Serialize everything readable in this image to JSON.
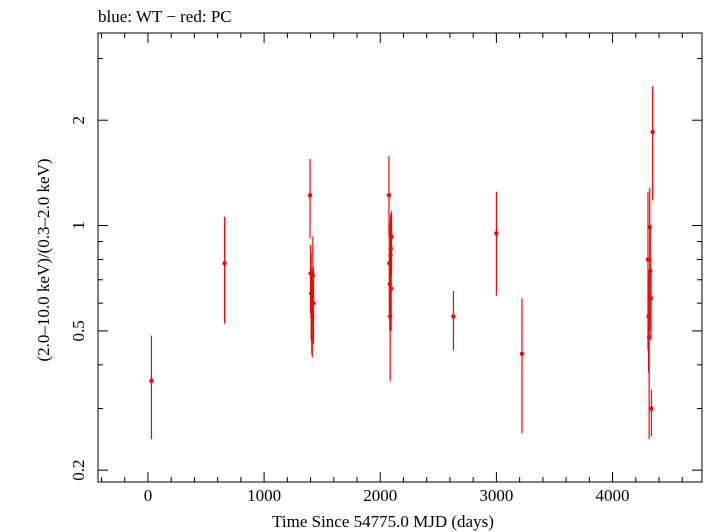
{
  "chart_data": {
    "type": "scatter",
    "title": "blue: WT − red: PC",
    "xlabel": "Time Since 54775.0 MJD (days)",
    "ylabel": "(2.0–10.0 keV)/(0.3–2.0 keV)",
    "xlim": [
      -430,
      4770
    ],
    "ylim": [
      0.185,
      3.55
    ],
    "yscale": "log",
    "x_ticks": [
      0,
      1000,
      2000,
      3000,
      4000
    ],
    "x_tick_labels": [
      "0",
      "1000",
      "2000",
      "3000",
      "4000"
    ],
    "y_ticks": [
      0.2,
      0.5,
      1,
      2
    ],
    "y_tick_labels": [
      "0.2",
      "0.5",
      "1",
      "2"
    ],
    "grid": false,
    "series": [
      {
        "name": "PC",
        "color": "#ff0000",
        "points": [
          {
            "x": 30,
            "y": 0.36,
            "ylo": 0.245,
            "yhi": 0.485
          },
          {
            "x": 660,
            "y": 0.78,
            "ylo": 0.525,
            "yhi": 1.06
          },
          {
            "x": 1395,
            "y": 1.22,
            "ylo": 0.92,
            "yhi": 1.55
          },
          {
            "x": 1400,
            "y": 0.73,
            "ylo": 0.56,
            "yhi": 0.88
          },
          {
            "x": 1405,
            "y": 0.64,
            "ylo": 0.47,
            "yhi": 0.83
          },
          {
            "x": 1410,
            "y": 0.58,
            "ylo": 0.43,
            "yhi": 0.75
          },
          {
            "x": 1415,
            "y": 0.55,
            "ylo": 0.42,
            "yhi": 0.69
          },
          {
            "x": 1420,
            "y": 0.72,
            "ylo": 0.52,
            "yhi": 0.93
          },
          {
            "x": 1425,
            "y": 0.6,
            "ylo": 0.46,
            "yhi": 0.76
          },
          {
            "x": 2075,
            "y": 1.22,
            "ylo": 0.93,
            "yhi": 1.58
          },
          {
            "x": 2078,
            "y": 0.78,
            "ylo": 0.56,
            "yhi": 1.02
          },
          {
            "x": 2082,
            "y": 0.68,
            "ylo": 0.5,
            "yhi": 0.88
          },
          {
            "x": 2085,
            "y": 0.55,
            "ylo": 0.36,
            "yhi": 0.77
          },
          {
            "x": 2088,
            "y": 0.82,
            "ylo": 0.6,
            "yhi": 1.06
          },
          {
            "x": 2091,
            "y": 0.86,
            "ylo": 0.66,
            "yhi": 1.08
          },
          {
            "x": 2094,
            "y": 0.66,
            "ylo": 0.5,
            "yhi": 0.84
          },
          {
            "x": 2097,
            "y": 0.93,
            "ylo": 0.72,
            "yhi": 1.1
          },
          {
            "x": 2630,
            "y": 0.55,
            "ylo": 0.44,
            "yhi": 0.65
          },
          {
            "x": 3000,
            "y": 0.95,
            "ylo": 0.63,
            "yhi": 1.25
          },
          {
            "x": 3220,
            "y": 0.43,
            "ylo": 0.255,
            "yhi": 0.62
          },
          {
            "x": 4305,
            "y": 0.8,
            "ylo": 0.44,
            "yhi": 1.25
          },
          {
            "x": 4310,
            "y": 0.55,
            "ylo": 0.38,
            "yhi": 0.72
          },
          {
            "x": 4315,
            "y": 0.48,
            "ylo": 0.245,
            "yhi": 0.73
          },
          {
            "x": 4320,
            "y": 0.99,
            "ylo": 0.72,
            "yhi": 1.28
          },
          {
            "x": 4325,
            "y": 0.74,
            "ylo": 0.5,
            "yhi": 0.99
          },
          {
            "x": 4330,
            "y": 0.62,
            "ylo": 0.47,
            "yhi": 0.76
          },
          {
            "x": 4335,
            "y": 0.3,
            "ylo": 0.25,
            "yhi": 0.34
          },
          {
            "x": 4345,
            "y": 1.85,
            "ylo": 1.18,
            "yhi": 2.5
          }
        ]
      }
    ]
  }
}
